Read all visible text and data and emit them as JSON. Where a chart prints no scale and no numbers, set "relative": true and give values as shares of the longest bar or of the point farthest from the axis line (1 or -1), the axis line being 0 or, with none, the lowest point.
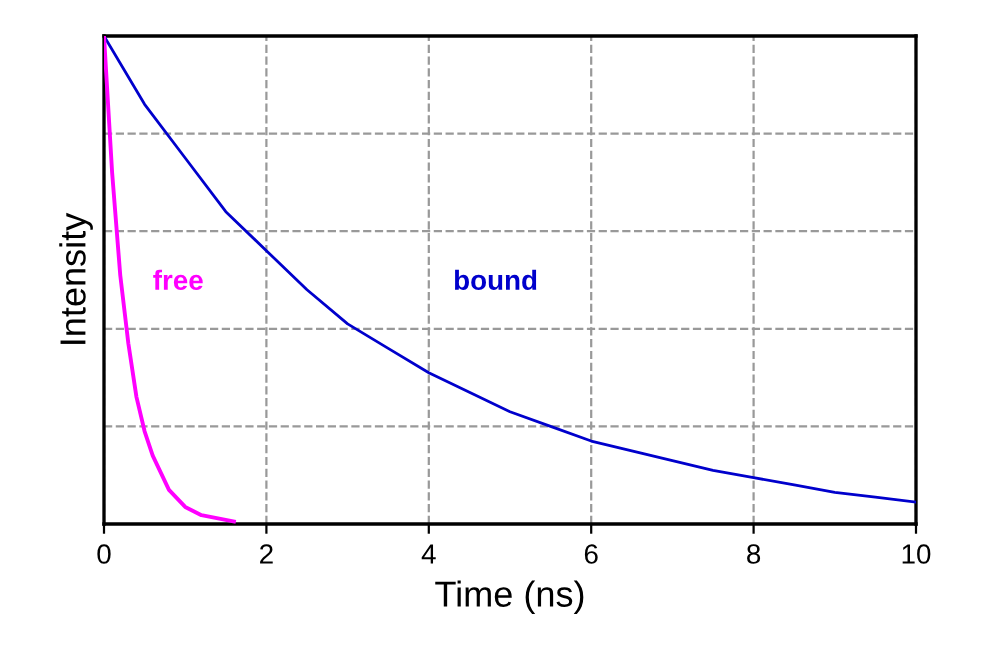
{
  "chart_data": {
    "type": "line",
    "xlabel": "Time (ns)",
    "ylabel": "Intensity",
    "relative": true,
    "xlim": [
      0,
      10
    ],
    "xticks": [
      0,
      2,
      4,
      6,
      8,
      10
    ],
    "grid": true,
    "legend": false,
    "marker": "none",
    "line_style": "solid",
    "series": [
      {
        "name": "free",
        "color": "#ff00ff",
        "x": [
          0,
          0.1,
          0.2,
          0.3,
          0.4,
          0.5,
          0.6,
          0.8,
          1.0,
          1.2,
          1.6
        ],
        "values": [
          1,
          0.72,
          0.51,
          0.37,
          0.26,
          0.19,
          0.14,
          0.07,
          0.035,
          0.018,
          0.005
        ]
      },
      {
        "name": "bound",
        "color": "#0000cc",
        "x": [
          0,
          0.5,
          1,
          1.5,
          2,
          2.5,
          3,
          3.5,
          4,
          4.5,
          5,
          5.5,
          6,
          6.5,
          7,
          7.5,
          8,
          8.5,
          9,
          9.5,
          10
        ],
        "values": [
          1,
          0.86,
          0.75,
          0.64,
          0.56,
          0.48,
          0.41,
          0.36,
          0.31,
          0.27,
          0.23,
          0.2,
          0.17,
          0.15,
          0.13,
          0.11,
          0.095,
          0.08,
          0.065,
          0.055,
          0.045
        ]
      }
    ]
  }
}
